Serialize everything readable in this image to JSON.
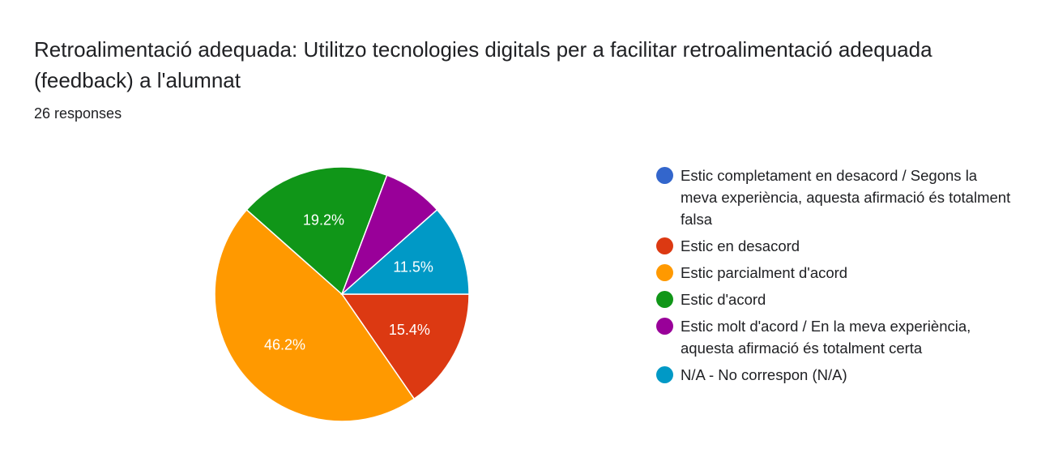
{
  "header": {
    "title": "Retroalimentació adequada: Utilitzo tecnologies digitals per a facilitar retroalimentació adequada (feedback) a l'alumnat",
    "responses": "26 responses"
  },
  "chart_data": {
    "type": "pie",
    "title": "Retroalimentació adequada: Utilitzo tecnologies digitals per a facilitar retroalimentació adequada (feedback) a l'alumnat",
    "total_responses": 26,
    "legend_position": "right",
    "series": [
      {
        "name": "Estic completament en desacord / Segons la meva experiència, aquesta afirmació és totalment falsa",
        "value": 0,
        "percent": 0,
        "color": "#3366cc",
        "label": ""
      },
      {
        "name": "Estic en desacord",
        "value": 4,
        "percent": 15.4,
        "color": "#dc3912",
        "label": "15.4%"
      },
      {
        "name": "Estic parcialment d'acord",
        "value": 12,
        "percent": 46.2,
        "color": "#ff9900",
        "label": "46.2%"
      },
      {
        "name": "Estic d'acord",
        "value": 5,
        "percent": 19.2,
        "color": "#109618",
        "label": "19.2%"
      },
      {
        "name": "Estic molt d'acord / En la meva experiència, aquesta afirmació és totalment certa",
        "value": 2,
        "percent": 7.7,
        "color": "#990099",
        "label": ""
      },
      {
        "name": "N/A - No correspon (N/A)",
        "value": 3,
        "percent": 11.5,
        "color": "#0099c6",
        "label": "11.5%"
      }
    ]
  }
}
